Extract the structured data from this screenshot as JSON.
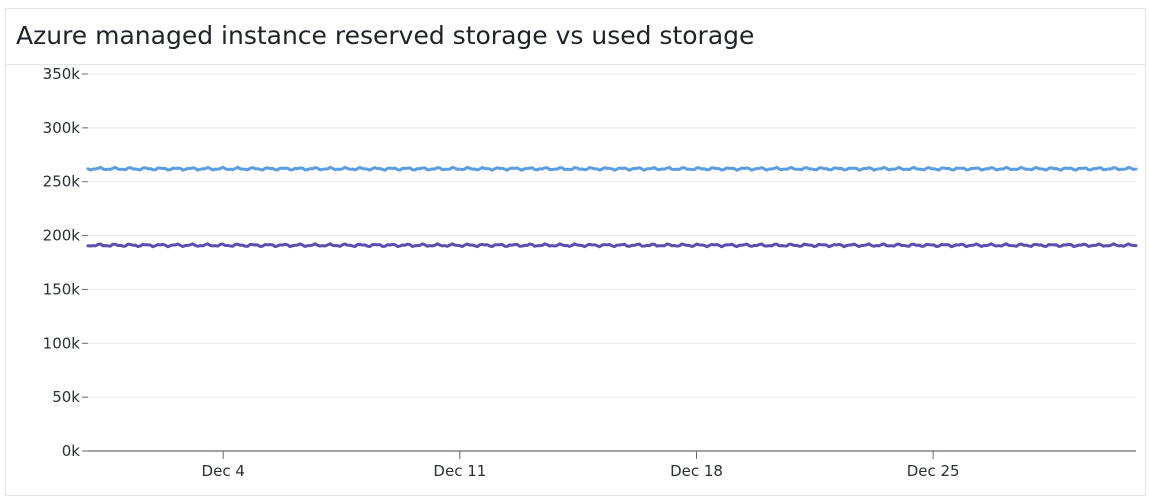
{
  "widget": {
    "title": "Azure managed instance reserved storage vs used storage"
  },
  "colors": {
    "reserved": "#5a9de0",
    "used": "#5c4db1",
    "grid": "#e6e8eb",
    "axis": "#666b73"
  },
  "chart_data": {
    "type": "line",
    "title": "Azure managed instance reserved storage vs used storage",
    "xlabel": "",
    "ylabel": "",
    "ylim": [
      0,
      350000
    ],
    "yticks": [
      {
        "value": 0,
        "label": "0k"
      },
      {
        "value": 50000,
        "label": "50k"
      },
      {
        "value": 100000,
        "label": "100k"
      },
      {
        "value": 150000,
        "label": "150k"
      },
      {
        "value": 200000,
        "label": "200k"
      },
      {
        "value": 250000,
        "label": "250k"
      },
      {
        "value": 300000,
        "label": "300k"
      },
      {
        "value": 350000,
        "label": "350k"
      }
    ],
    "xlim": [
      "Nov 30",
      "Dec 31"
    ],
    "xticks": [
      {
        "value": "Dec 4",
        "label": "Dec 4"
      },
      {
        "value": "Dec 11",
        "label": "Dec 11"
      },
      {
        "value": "Dec 18",
        "label": "Dec 18"
      },
      {
        "value": "Dec 25",
        "label": "Dec 25"
      }
    ],
    "grid": true,
    "legend": "none",
    "series": [
      {
        "key": "reserved",
        "x": [
          "Nov 30",
          "Dec 4",
          "Dec 11",
          "Dec 16",
          "Dec 18",
          "Dec 25",
          "Dec 29",
          "Dec 31"
        ],
        "values": [
          262000,
          262000,
          262000,
          262000,
          262000,
          262000,
          262000,
          262000
        ]
      },
      {
        "key": "used",
        "x": [
          "Nov 30",
          "Dec 4",
          "Dec 11",
          "Dec 16",
          "Dec 18",
          "Dec 25",
          "Dec 29",
          "Dec 31"
        ],
        "values": [
          191000,
          191000,
          191000,
          191000,
          191000,
          191000,
          191000,
          191000
        ]
      }
    ]
  }
}
